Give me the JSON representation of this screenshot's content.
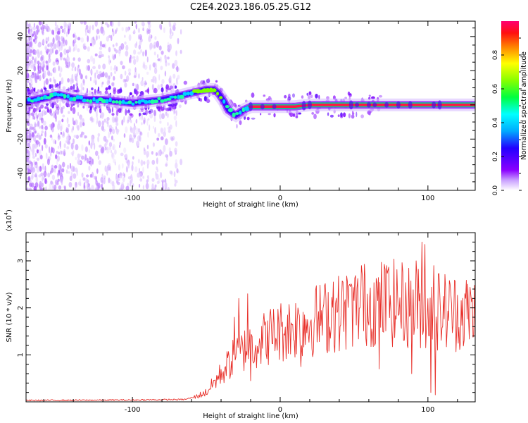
{
  "figure_title": "C2E4.2023.186.05.25.G12",
  "chart_data": [
    {
      "type": "heatmap",
      "title": "",
      "xlabel": "Height of straight line (km)",
      "ylabel": "Frequency (Hz)",
      "xlim": [
        -172,
        132
      ],
      "ylim": [
        -50,
        49
      ],
      "xticks": [
        -100,
        0,
        100
      ],
      "yticks": [
        -40,
        -20,
        0,
        20,
        40
      ],
      "colorbar": {
        "label": "Normalized spectral amplitude",
        "range": [
          0.0,
          1.0
        ],
        "ticks": [
          "0.0",
          "0.2",
          "0.4",
          "0.6",
          "0.8"
        ]
      },
      "ridge": {
        "x": [
          -172,
          -160,
          -150,
          -140,
          -130,
          -120,
          -110,
          -100,
          -90,
          -80,
          -70,
          -60,
          -55,
          -50,
          -45,
          -42,
          -38,
          -35,
          -32,
          -30,
          -25,
          -20,
          -10,
          0,
          10,
          20,
          40,
          60,
          80,
          100,
          132
        ],
        "y": [
          2,
          4,
          6,
          4,
          3,
          3,
          2,
          1,
          2,
          3,
          5,
          7,
          8,
          9,
          9,
          7,
          2,
          -3,
          -5,
          -6,
          -3,
          -1,
          -1,
          -1,
          -1,
          0,
          0,
          0,
          0,
          0,
          0
        ]
      }
    },
    {
      "type": "line",
      "title": "",
      "xlabel": "Height of straight line (km)",
      "ylabel": "SNR (10 * v/v)",
      "y_multiplier": "(x10^4)",
      "xlim": [
        -172,
        132
      ],
      "ylim": [
        0,
        3.6
      ],
      "xticks": [
        -100,
        0,
        100
      ],
      "yticks": [
        1,
        2,
        3
      ],
      "color": "#e8302a",
      "envelope": {
        "x": [
          -172,
          -100,
          -65,
          -58,
          -50,
          -45,
          -40,
          -35,
          -30,
          -25,
          -20,
          -15,
          -10,
          -5,
          0,
          10,
          20,
          30,
          40,
          50,
          60,
          70,
          80,
          90,
          100,
          110,
          120,
          132
        ],
        "y": [
          0.03,
          0.04,
          0.05,
          0.1,
          0.2,
          0.4,
          0.6,
          0.8,
          1.0,
          1.1,
          1.2,
          1.3,
          1.35,
          1.45,
          1.5,
          1.6,
          1.7,
          1.8,
          1.9,
          2.0,
          2.1,
          2.1,
          2.1,
          2.0,
          2.0,
          1.95,
          1.9,
          1.9
        ]
      },
      "peaks": {
        "x": [
          -31,
          -28,
          -22,
          36,
          47,
          55,
          72,
          92,
          96,
          98,
          104
        ],
        "y": [
          1.8,
          2.2,
          2.3,
          2.55,
          2.5,
          2.9,
          2.9,
          3.0,
          3.4,
          3.35,
          2.9
        ]
      },
      "dips": {
        "x": [
          -20,
          14,
          67,
          89,
          102,
          105
        ],
        "y": [
          0.45,
          0.75,
          0.7,
          0.6,
          0.2,
          0.15
        ]
      }
    }
  ]
}
